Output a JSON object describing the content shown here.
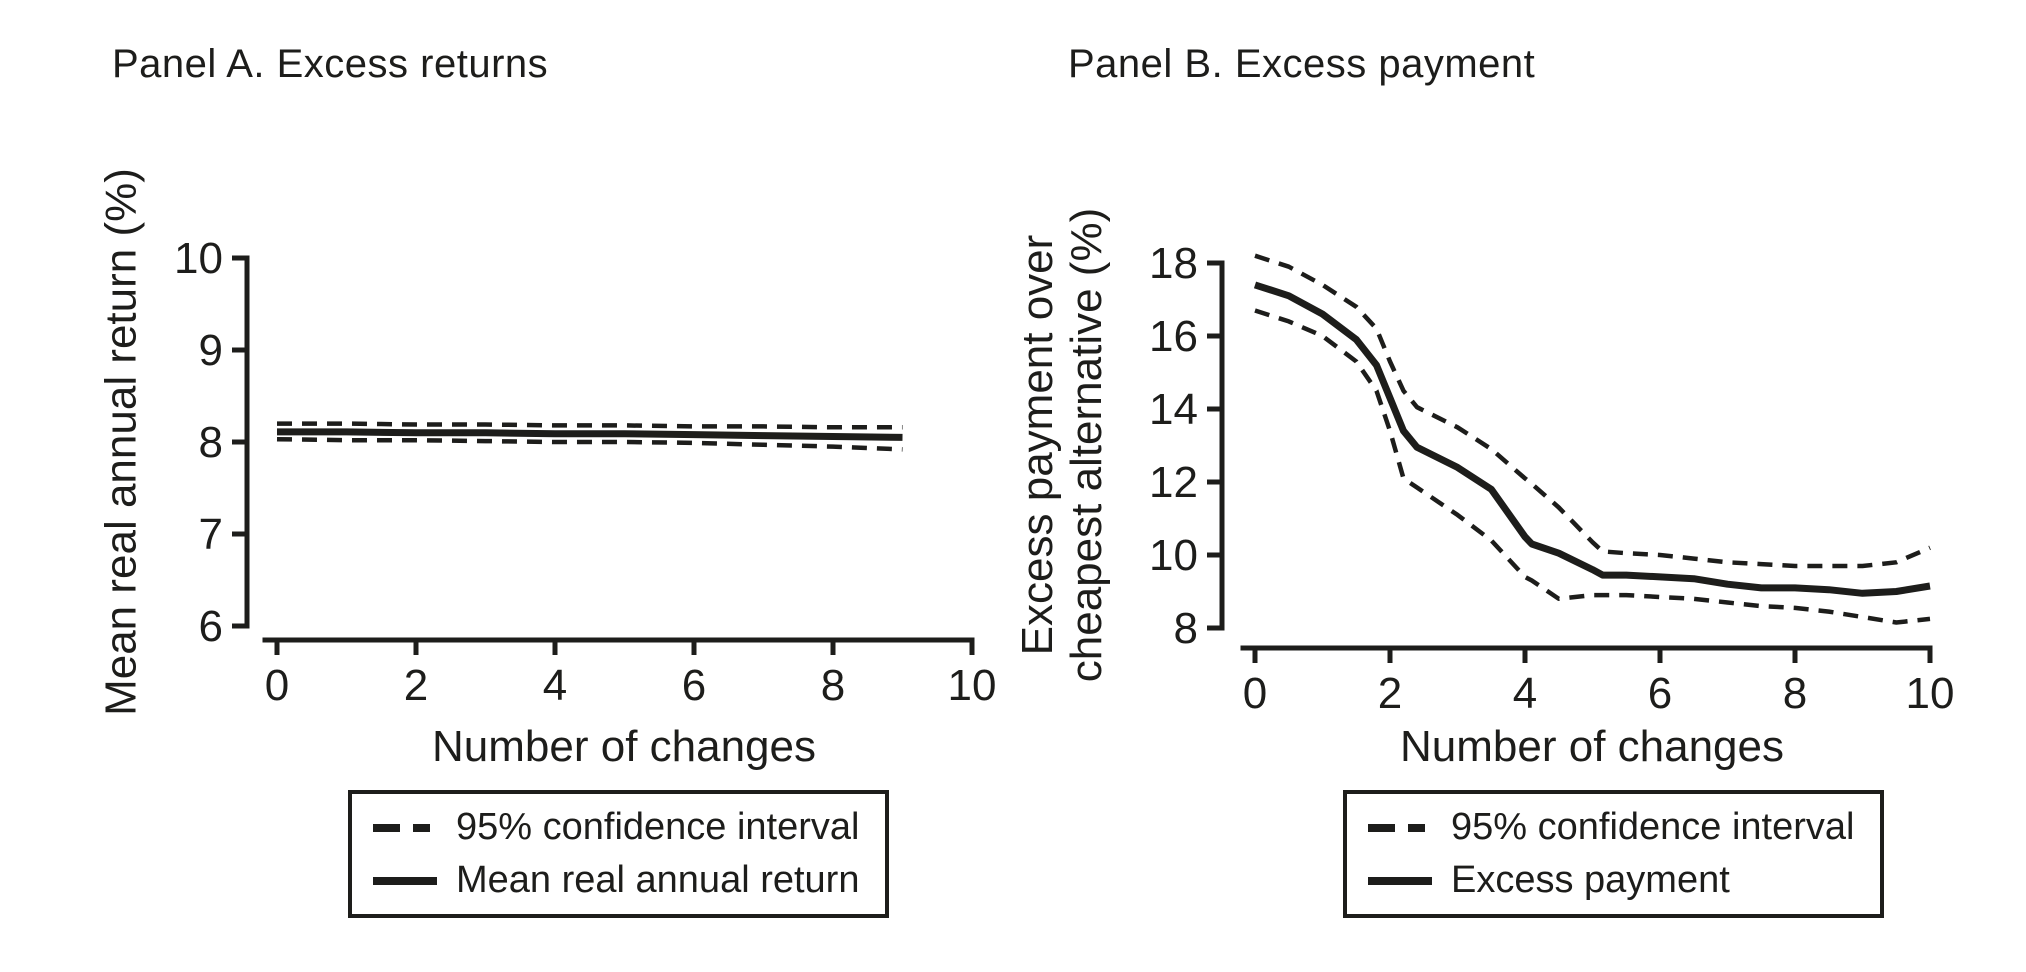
{
  "figure": {
    "background": "#ffffff",
    "ink_color": "#1d1d1b"
  },
  "chart_data": [
    {
      "type": "line",
      "title": "Panel A. Excess returns",
      "xlabel": "Number of changes",
      "ylabel": "Mean real annual return (%)",
      "ylabel_lines": [
        "Mean real annual return (%)"
      ],
      "xlim": [
        0,
        10
      ],
      "ylim": [
        6,
        10
      ],
      "xticks": [
        0,
        2,
        4,
        6,
        8,
        10
      ],
      "yticks": [
        10,
        9,
        8,
        7,
        6
      ],
      "grid": false,
      "legend_position": "below",
      "x": [
        0,
        1,
        2,
        3,
        4,
        5,
        6,
        7,
        8,
        9
      ],
      "series": [
        {
          "name": "95% CI upper bound",
          "style": "dashed",
          "values": [
            8.2,
            8.2,
            8.19,
            8.19,
            8.18,
            8.18,
            8.17,
            8.17,
            8.16,
            8.16
          ]
        },
        {
          "name": "95% CI lower bound",
          "style": "dashed",
          "values": [
            8.03,
            8.02,
            8.02,
            8.01,
            8.0,
            8.0,
            7.99,
            7.97,
            7.95,
            7.92
          ]
        },
        {
          "name": "Mean real annual return",
          "style": "solid",
          "values": [
            8.11,
            8.11,
            8.1,
            8.1,
            8.09,
            8.09,
            8.08,
            8.07,
            8.06,
            8.05
          ]
        }
      ],
      "legend": [
        {
          "style": "dashed",
          "label": "95% confidence interval"
        },
        {
          "style": "solid",
          "label": "Mean real annual return"
        }
      ]
    },
    {
      "type": "line",
      "title": "Panel B. Excess payment",
      "xlabel": "Number of changes",
      "ylabel": "Excess payment over cheapest alternative (%)",
      "ylabel_lines": [
        "Excess payment over",
        "cheapest alternative (%)"
      ],
      "xlim": [
        0,
        10
      ],
      "ylim": [
        8,
        18
      ],
      "xticks": [
        0,
        2,
        4,
        6,
        8,
        10
      ],
      "yticks": [
        18,
        16,
        14,
        12,
        10,
        8
      ],
      "grid": false,
      "legend_position": "below",
      "x": [
        0,
        0.5,
        1,
        1.5,
        1.8,
        2,
        2.2,
        2.4,
        3,
        3.5,
        4,
        4.1,
        4.5,
        5,
        5.15,
        5.5,
        6,
        6.5,
        7,
        7.5,
        8,
        8.5,
        9,
        9.5,
        10
      ],
      "series": [
        {
          "name": "95% CI upper bound",
          "style": "dashed",
          "values": [
            18.2,
            17.9,
            17.4,
            16.8,
            16.2,
            15.3,
            14.5,
            14.05,
            13.5,
            12.9,
            12.1,
            11.95,
            11.3,
            10.35,
            10.1,
            10.05,
            10.0,
            9.9,
            9.8,
            9.75,
            9.7,
            9.7,
            9.7,
            9.8,
            10.2
          ]
        },
        {
          "name": "95% CI lower bound",
          "style": "dashed",
          "values": [
            16.7,
            16.4,
            16.0,
            15.3,
            14.5,
            13.4,
            12.1,
            11.85,
            11.1,
            10.4,
            9.4,
            9.3,
            8.8,
            8.9,
            8.9,
            8.9,
            8.85,
            8.8,
            8.7,
            8.6,
            8.55,
            8.45,
            8.3,
            8.15,
            8.25
          ]
        },
        {
          "name": "Excess payment",
          "style": "solid",
          "values": [
            17.4,
            17.1,
            16.6,
            15.9,
            15.2,
            14.3,
            13.4,
            12.95,
            12.4,
            11.8,
            10.5,
            10.3,
            10.05,
            9.6,
            9.45,
            9.45,
            9.4,
            9.35,
            9.2,
            9.1,
            9.1,
            9.05,
            8.95,
            9.0,
            9.15
          ]
        }
      ],
      "legend": [
        {
          "style": "dashed",
          "label": "95% confidence interval"
        },
        {
          "style": "solid",
          "label": "Excess payment"
        }
      ]
    }
  ]
}
